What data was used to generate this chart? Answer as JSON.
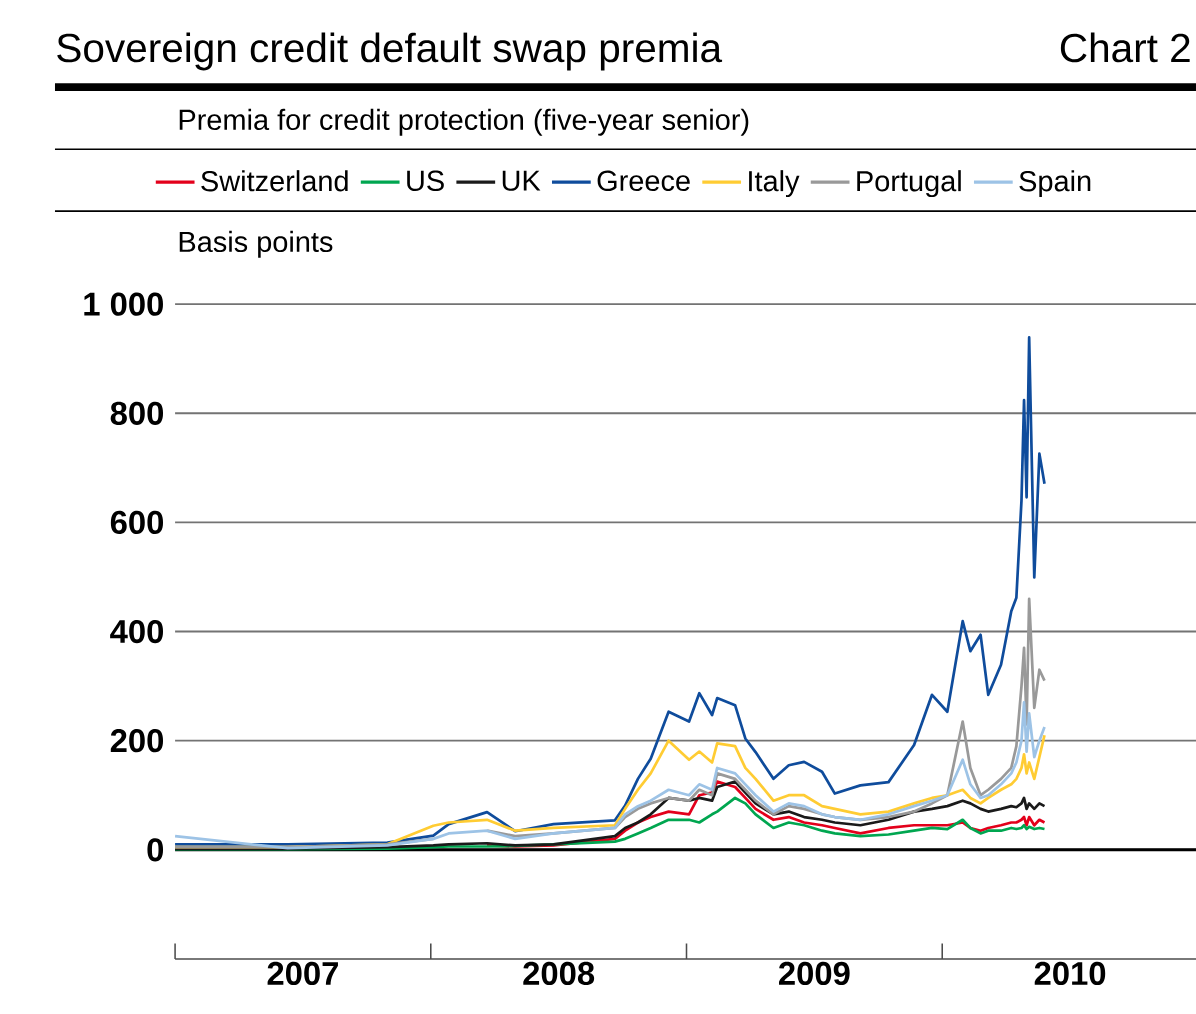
{
  "chart_data": {
    "type": "line",
    "title": "Sovereign credit default swap premia",
    "subtitle": "Premia for credit protection (five-year senior)",
    "ylabel": "Basis points",
    "annotations": [
      "Chart 2"
    ],
    "x": [
      2007.0,
      2007.44,
      2007.83,
      2008.01,
      2008.07,
      2008.22,
      2008.33,
      2008.48,
      2008.72,
      2008.76,
      2008.81,
      2008.86,
      2008.93,
      2009.01,
      2009.05,
      2009.1,
      2009.12,
      2009.19,
      2009.23,
      2009.27,
      2009.34,
      2009.4,
      2009.46,
      2009.53,
      2009.58,
      2009.68,
      2009.79,
      2009.89,
      2009.96,
      2010.02,
      2010.08,
      2010.11,
      2010.15,
      2010.18,
      2010.23,
      2010.27,
      2010.29,
      2010.31,
      2010.32,
      2010.33,
      2010.34,
      2010.36,
      2010.38,
      2010.4
    ],
    "series": [
      {
        "name": "Switzerland",
        "color": "#e3001b",
        "values": [
          null,
          null,
          null,
          null,
          null,
          8,
          6,
          8,
          20,
          35,
          50,
          60,
          70,
          65,
          100,
          105,
          125,
          115,
          95,
          75,
          55,
          60,
          50,
          45,
          40,
          30,
          40,
          45,
          45,
          45,
          50,
          40,
          35,
          40,
          45,
          50,
          50,
          55,
          60,
          45,
          60,
          45,
          55,
          50
        ]
      },
      {
        "name": "US",
        "color": "#00a650",
        "values": [
          1,
          1,
          2,
          5,
          6,
          6,
          7,
          10,
          15,
          20,
          30,
          40,
          55,
          55,
          50,
          65,
          70,
          95,
          85,
          65,
          40,
          50,
          45,
          35,
          30,
          25,
          28,
          35,
          40,
          38,
          55,
          40,
          30,
          35,
          35,
          40,
          38,
          40,
          45,
          38,
          42,
          38,
          40,
          38
        ]
      },
      {
        "name": "UK",
        "color": "#1a1a1a",
        "values": [
          2,
          2,
          5,
          8,
          10,
          12,
          8,
          10,
          25,
          40,
          50,
          65,
          95,
          90,
          95,
          90,
          115,
          125,
          105,
          85,
          65,
          70,
          60,
          55,
          50,
          45,
          55,
          70,
          75,
          80,
          90,
          85,
          75,
          70,
          75,
          80,
          78,
          85,
          95,
          75,
          85,
          75,
          85,
          80
        ]
      },
      {
        "name": "Greece",
        "color": "#0f4c9c",
        "values": [
          10,
          10,
          13,
          26,
          47,
          69,
          34,
          47,
          54,
          81,
          130,
          167,
          253,
          235,
          287,
          247,
          278,
          265,
          204,
          179,
          130,
          155,
          161,
          143,
          103,
          118,
          124,
          192,
          284,
          253,
          419,
          364,
          394,
          284,
          339,
          437,
          462,
          640,
          824,
          646,
          939,
          499,
          726,
          671
        ]
      },
      {
        "name": "Italy",
        "color": "#ffcc33",
        "values": [
          5,
          5,
          10,
          44,
          50,
          55,
          35,
          40,
          45,
          75,
          110,
          140,
          200,
          165,
          180,
          160,
          195,
          190,
          150,
          130,
          90,
          100,
          100,
          80,
          75,
          65,
          70,
          85,
          95,
          100,
          110,
          95,
          85,
          95,
          110,
          120,
          130,
          150,
          175,
          140,
          160,
          130,
          170,
          210
        ]
      },
      {
        "name": "Portugal",
        "color": "#999999",
        "values": [
          5,
          5,
          10,
          20,
          null,
          35,
          25,
          30,
          40,
          60,
          75,
          85,
          95,
          90,
          110,
          100,
          140,
          130,
          110,
          90,
          65,
          80,
          75,
          65,
          60,
          55,
          60,
          70,
          85,
          100,
          235,
          150,
          100,
          110,
          130,
          150,
          190,
          300,
          370,
          230,
          460,
          260,
          330,
          310
        ]
      },
      {
        "name": "Spain",
        "color": "#9dc3e6",
        "values": [
          25,
          3,
          8,
          20,
          30,
          35,
          20,
          30,
          40,
          65,
          80,
          90,
          110,
          100,
          120,
          110,
          150,
          140,
          120,
          100,
          70,
          85,
          80,
          65,
          60,
          55,
          65,
          80,
          90,
          100,
          165,
          120,
          95,
          100,
          120,
          140,
          160,
          200,
          270,
          180,
          250,
          170,
          200,
          225
        ]
      }
    ],
    "xlim": [
      2007,
      2011
    ],
    "xticks": [
      {
        "value": 2007,
        "label": null
      },
      {
        "value": 2008,
        "label": null
      },
      {
        "value": 2009,
        "label": null
      },
      {
        "value": 2010,
        "label": null
      },
      {
        "value": 2011,
        "label": null
      },
      {
        "value": 2007.5,
        "label": "2007"
      },
      {
        "value": 2008.5,
        "label": "2008"
      },
      {
        "value": 2009.5,
        "label": "2009"
      },
      {
        "value": 2010.5,
        "label": "2010"
      }
    ],
    "ylim": [
      -200,
      1000
    ],
    "ref_lines": [
      {
        "axis": "y",
        "value": 0,
        "color": "#000000"
      }
    ],
    "yticks": [
      0,
      200,
      400,
      600,
      800,
      {
        "value": 1000,
        "label": "1 000"
      }
    ],
    "grid": "y",
    "legend": "top",
    "line_style": "solid",
    "marker": "none"
  }
}
